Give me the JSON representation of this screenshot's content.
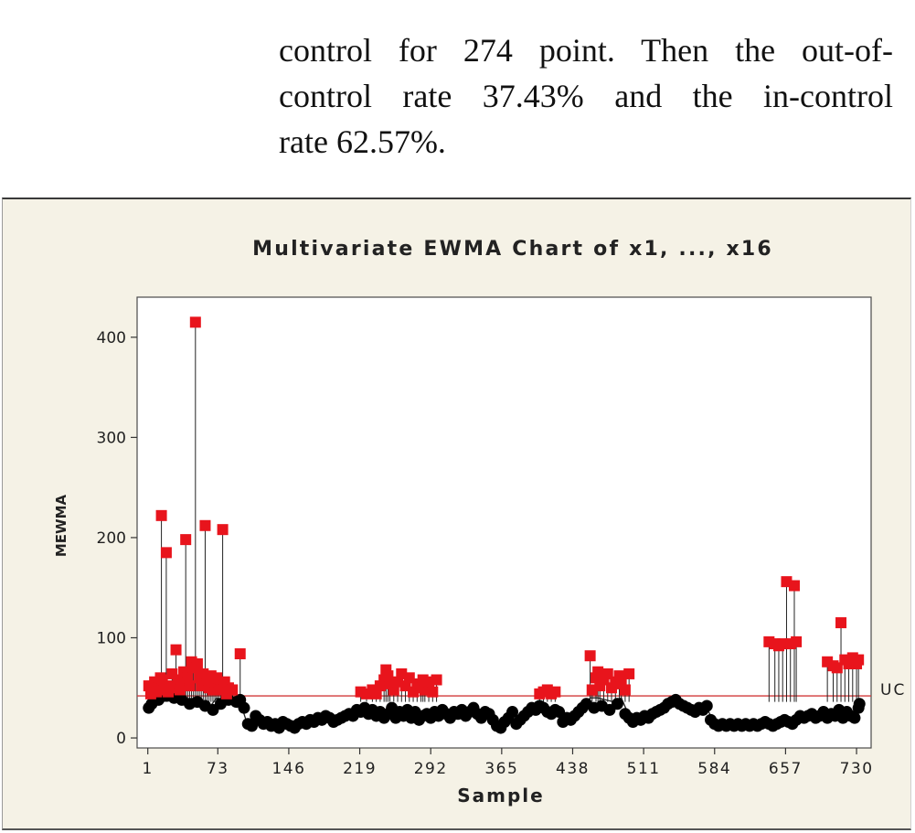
{
  "paragraph": {
    "line1": "control for 274 point. Then the out-of-",
    "line2": "control rate 37.43% and the in-control",
    "line3": "rate 62.57%."
  },
  "colors": {
    "out_of_control": "#e8141c",
    "in_control": "#000000",
    "limit_line": "#d23a3a",
    "frame_bg": "#f5f2e6"
  },
  "chart_data": {
    "type": "scatter",
    "title": "Multivariate EWMA Chart of x1, ..., x16",
    "xlabel": "Sample",
    "ylabel": "MEWMA",
    "xlim": [
      -10,
      745
    ],
    "ylim": [
      -10,
      440
    ],
    "x_ticks": [
      1,
      73,
      146,
      219,
      292,
      365,
      438,
      511,
      584,
      657,
      730
    ],
    "y_ticks": [
      0,
      100,
      200,
      300,
      400
    ],
    "ucl_value": 42,
    "ucl_label": "UC",
    "baseline": [
      [
        1,
        28
      ],
      [
        8,
        36
      ],
      [
        16,
        40
      ],
      [
        24,
        44
      ],
      [
        32,
        38
      ],
      [
        40,
        35
      ],
      [
        48,
        40
      ],
      [
        56,
        38
      ],
      [
        64,
        30
      ],
      [
        72,
        40
      ],
      [
        80,
        36
      ],
      [
        88,
        38
      ],
      [
        96,
        36
      ],
      [
        104,
        12
      ],
      [
        112,
        24
      ],
      [
        120,
        16
      ],
      [
        128,
        14
      ],
      [
        136,
        12
      ],
      [
        144,
        18
      ],
      [
        152,
        10
      ],
      [
        160,
        16
      ],
      [
        168,
        18
      ],
      [
        176,
        20
      ],
      [
        184,
        22
      ],
      [
        192,
        18
      ],
      [
        200,
        22
      ],
      [
        208,
        24
      ],
      [
        216,
        26
      ],
      [
        224,
        28
      ],
      [
        232,
        30
      ],
      [
        240,
        24
      ],
      [
        248,
        28
      ],
      [
        256,
        22
      ],
      [
        264,
        26
      ],
      [
        272,
        24
      ],
      [
        280,
        20
      ],
      [
        288,
        26
      ],
      [
        296,
        24
      ],
      [
        304,
        28
      ],
      [
        312,
        22
      ],
      [
        320,
        26
      ],
      [
        328,
        24
      ],
      [
        336,
        30
      ],
      [
        344,
        22
      ],
      [
        352,
        26
      ],
      [
        360,
        14
      ],
      [
        368,
        16
      ],
      [
        376,
        26
      ],
      [
        384,
        18
      ],
      [
        392,
        24
      ],
      [
        400,
        36
      ],
      [
        408,
        32
      ],
      [
        416,
        28
      ],
      [
        424,
        30
      ],
      [
        432,
        18
      ],
      [
        440,
        22
      ],
      [
        448,
        28
      ],
      [
        456,
        40
      ],
      [
        464,
        40
      ],
      [
        472,
        38
      ],
      [
        480,
        36
      ],
      [
        488,
        40
      ],
      [
        496,
        22
      ],
      [
        504,
        18
      ],
      [
        512,
        22
      ],
      [
        520,
        24
      ],
      [
        528,
        30
      ],
      [
        536,
        36
      ],
      [
        544,
        38
      ],
      [
        552,
        34
      ],
      [
        560,
        30
      ],
      [
        568,
        28
      ],
      [
        576,
        30
      ],
      [
        584,
        14
      ],
      [
        592,
        14
      ],
      [
        600,
        14
      ],
      [
        608,
        14
      ],
      [
        616,
        14
      ],
      [
        624,
        14
      ],
      [
        632,
        14
      ],
      [
        640,
        14
      ],
      [
        648,
        14
      ],
      [
        656,
        16
      ],
      [
        664,
        16
      ],
      [
        672,
        22
      ],
      [
        680,
        22
      ],
      [
        688,
        22
      ],
      [
        696,
        24
      ],
      [
        704,
        22
      ],
      [
        712,
        26
      ],
      [
        720,
        24
      ],
      [
        728,
        22
      ],
      [
        733,
        30
      ]
    ],
    "in_control_points": [
      [
        2,
        30
      ],
      [
        5,
        34
      ],
      [
        12,
        38
      ],
      [
        20,
        42
      ],
      [
        28,
        40
      ],
      [
        36,
        38
      ],
      [
        44,
        34
      ],
      [
        52,
        36
      ],
      [
        60,
        32
      ],
      [
        68,
        28
      ],
      [
        76,
        34
      ],
      [
        84,
        38
      ],
      [
        92,
        36
      ],
      [
        96,
        38
      ],
      [
        100,
        30
      ],
      [
        104,
        14
      ],
      [
        108,
        12
      ],
      [
        112,
        22
      ],
      [
        116,
        18
      ],
      [
        120,
        14
      ],
      [
        124,
        16
      ],
      [
        128,
        12
      ],
      [
        132,
        14
      ],
      [
        136,
        10
      ],
      [
        140,
        16
      ],
      [
        144,
        14
      ],
      [
        148,
        12
      ],
      [
        152,
        10
      ],
      [
        156,
        14
      ],
      [
        160,
        16
      ],
      [
        164,
        14
      ],
      [
        168,
        18
      ],
      [
        172,
        16
      ],
      [
        176,
        20
      ],
      [
        180,
        18
      ],
      [
        184,
        22
      ],
      [
        188,
        20
      ],
      [
        192,
        16
      ],
      [
        196,
        18
      ],
      [
        200,
        20
      ],
      [
        204,
        22
      ],
      [
        208,
        24
      ],
      [
        212,
        22
      ],
      [
        216,
        28
      ],
      [
        220,
        26
      ],
      [
        224,
        30
      ],
      [
        228,
        24
      ],
      [
        232,
        28
      ],
      [
        236,
        22
      ],
      [
        240,
        26
      ],
      [
        244,
        20
      ],
      [
        248,
        24
      ],
      [
        252,
        30
      ],
      [
        256,
        20
      ],
      [
        260,
        26
      ],
      [
        264,
        22
      ],
      [
        268,
        28
      ],
      [
        272,
        20
      ],
      [
        276,
        26
      ],
      [
        280,
        18
      ],
      [
        284,
        22
      ],
      [
        288,
        24
      ],
      [
        292,
        20
      ],
      [
        296,
        26
      ],
      [
        300,
        22
      ],
      [
        304,
        28
      ],
      [
        308,
        24
      ],
      [
        312,
        20
      ],
      [
        316,
        26
      ],
      [
        320,
        24
      ],
      [
        324,
        28
      ],
      [
        328,
        22
      ],
      [
        332,
        26
      ],
      [
        336,
        30
      ],
      [
        340,
        24
      ],
      [
        344,
        20
      ],
      [
        348,
        26
      ],
      [
        352,
        24
      ],
      [
        356,
        18
      ],
      [
        360,
        12
      ],
      [
        364,
        10
      ],
      [
        368,
        16
      ],
      [
        372,
        20
      ],
      [
        376,
        26
      ],
      [
        380,
        14
      ],
      [
        384,
        18
      ],
      [
        388,
        22
      ],
      [
        392,
        26
      ],
      [
        396,
        30
      ],
      [
        400,
        28
      ],
      [
        404,
        32
      ],
      [
        408,
        30
      ],
      [
        412,
        26
      ],
      [
        416,
        24
      ],
      [
        420,
        28
      ],
      [
        424,
        26
      ],
      [
        428,
        16
      ],
      [
        432,
        20
      ],
      [
        436,
        18
      ],
      [
        440,
        22
      ],
      [
        444,
        26
      ],
      [
        448,
        30
      ],
      [
        452,
        34
      ],
      [
        460,
        30
      ],
      [
        468,
        32
      ],
      [
        476,
        28
      ],
      [
        484,
        34
      ],
      [
        492,
        24
      ],
      [
        496,
        20
      ],
      [
        500,
        16
      ],
      [
        504,
        20
      ],
      [
        508,
        18
      ],
      [
        512,
        22
      ],
      [
        516,
        20
      ],
      [
        520,
        24
      ],
      [
        524,
        26
      ],
      [
        528,
        28
      ],
      [
        532,
        30
      ],
      [
        536,
        34
      ],
      [
        540,
        36
      ],
      [
        544,
        38
      ],
      [
        548,
        34
      ],
      [
        552,
        32
      ],
      [
        556,
        30
      ],
      [
        560,
        28
      ],
      [
        564,
        26
      ],
      [
        568,
        30
      ],
      [
        572,
        28
      ],
      [
        576,
        32
      ],
      [
        580,
        18
      ],
      [
        584,
        14
      ],
      [
        588,
        12
      ],
      [
        592,
        14
      ],
      [
        596,
        12
      ],
      [
        600,
        14
      ],
      [
        604,
        12
      ],
      [
        608,
        14
      ],
      [
        612,
        12
      ],
      [
        616,
        14
      ],
      [
        620,
        12
      ],
      [
        624,
        14
      ],
      [
        628,
        12
      ],
      [
        632,
        14
      ],
      [
        636,
        16
      ],
      [
        640,
        14
      ],
      [
        644,
        12
      ],
      [
        648,
        14
      ],
      [
        652,
        16
      ],
      [
        656,
        18
      ],
      [
        660,
        16
      ],
      [
        664,
        14
      ],
      [
        668,
        18
      ],
      [
        672,
        22
      ],
      [
        676,
        20
      ],
      [
        680,
        22
      ],
      [
        684,
        24
      ],
      [
        688,
        20
      ],
      [
        692,
        22
      ],
      [
        696,
        26
      ],
      [
        700,
        20
      ],
      [
        704,
        24
      ],
      [
        708,
        22
      ],
      [
        712,
        28
      ],
      [
        716,
        20
      ],
      [
        720,
        26
      ],
      [
        724,
        22
      ],
      [
        728,
        20
      ],
      [
        732,
        30
      ],
      [
        733,
        34
      ]
    ],
    "out_of_control_points": [
      [
        2,
        52
      ],
      [
        4,
        44
      ],
      [
        6,
        48
      ],
      [
        8,
        56
      ],
      [
        10,
        46
      ],
      [
        12,
        50
      ],
      [
        14,
        60
      ],
      [
        15,
        222
      ],
      [
        16,
        58
      ],
      [
        18,
        48
      ],
      [
        20,
        185
      ],
      [
        22,
        46
      ],
      [
        24,
        52
      ],
      [
        26,
        64
      ],
      [
        28,
        50
      ],
      [
        30,
        88
      ],
      [
        32,
        54
      ],
      [
        34,
        48
      ],
      [
        36,
        58
      ],
      [
        38,
        66
      ],
      [
        40,
        198
      ],
      [
        42,
        60
      ],
      [
        44,
        52
      ],
      [
        46,
        76
      ],
      [
        48,
        70
      ],
      [
        50,
        415
      ],
      [
        52,
        74
      ],
      [
        54,
        60
      ],
      [
        56,
        52
      ],
      [
        58,
        64
      ],
      [
        60,
        212
      ],
      [
        62,
        58
      ],
      [
        64,
        50
      ],
      [
        66,
        62
      ],
      [
        68,
        48
      ],
      [
        70,
        56
      ],
      [
        72,
        60
      ],
      [
        74,
        52
      ],
      [
        76,
        48
      ],
      [
        78,
        208
      ],
      [
        80,
        56
      ],
      [
        82,
        44
      ],
      [
        84,
        50
      ],
      [
        88,
        48
      ],
      [
        96,
        84
      ],
      [
        220,
        46
      ],
      [
        226,
        44
      ],
      [
        232,
        48
      ],
      [
        236,
        44
      ],
      [
        240,
        52
      ],
      [
        244,
        58
      ],
      [
        246,
        68
      ],
      [
        248,
        62
      ],
      [
        250,
        54
      ],
      [
        254,
        48
      ],
      [
        258,
        56
      ],
      [
        262,
        64
      ],
      [
        266,
        52
      ],
      [
        270,
        60
      ],
      [
        274,
        46
      ],
      [
        278,
        54
      ],
      [
        282,
        50
      ],
      [
        284,
        58
      ],
      [
        286,
        48
      ],
      [
        290,
        56
      ],
      [
        294,
        46
      ],
      [
        298,
        58
      ],
      [
        404,
        44
      ],
      [
        408,
        46
      ],
      [
        412,
        48
      ],
      [
        416,
        44
      ],
      [
        420,
        46
      ],
      [
        456,
        82
      ],
      [
        458,
        48
      ],
      [
        462,
        60
      ],
      [
        464,
        66
      ],
      [
        466,
        52
      ],
      [
        470,
        58
      ],
      [
        474,
        64
      ],
      [
        478,
        50
      ],
      [
        482,
        56
      ],
      [
        486,
        62
      ],
      [
        488,
        54
      ],
      [
        492,
        48
      ],
      [
        496,
        64
      ],
      [
        640,
        96
      ],
      [
        646,
        94
      ],
      [
        650,
        92
      ],
      [
        654,
        94
      ],
      [
        658,
        156
      ],
      [
        662,
        94
      ],
      [
        666,
        152
      ],
      [
        668,
        96
      ],
      [
        700,
        76
      ],
      [
        706,
        72
      ],
      [
        710,
        70
      ],
      [
        714,
        115
      ],
      [
        718,
        78
      ],
      [
        722,
        74
      ],
      [
        726,
        80
      ],
      [
        730,
        74
      ],
      [
        732,
        78
      ]
    ]
  }
}
